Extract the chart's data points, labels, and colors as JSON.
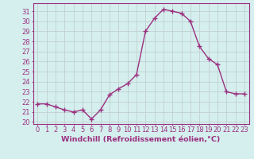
{
  "x": [
    0,
    1,
    2,
    3,
    4,
    5,
    6,
    7,
    8,
    9,
    10,
    11,
    12,
    13,
    14,
    15,
    16,
    17,
    18,
    19,
    20,
    21,
    22,
    23
  ],
  "y": [
    21.8,
    21.8,
    21.5,
    21.2,
    21.0,
    21.2,
    20.3,
    21.2,
    22.7,
    23.3,
    23.8,
    24.7,
    29.0,
    30.3,
    31.2,
    31.0,
    30.8,
    30.0,
    27.5,
    26.3,
    25.7,
    23.0,
    22.8,
    22.8
  ],
  "line_color": "#9b3080",
  "marker": "+",
  "marker_size": 4,
  "linewidth": 1.0,
  "xlabel": "Windchill (Refroidissement éolien,°C)",
  "xlabel_fontsize": 6.8,
  "ylabel_ticks": [
    20,
    21,
    22,
    23,
    24,
    25,
    26,
    27,
    28,
    29,
    30,
    31
  ],
  "xlim": [
    -0.5,
    23.5
  ],
  "ylim": [
    19.8,
    31.8
  ],
  "bg_color": "#d5efee",
  "grid_color": "#c0d0d0",
  "tick_fontsize": 6.0,
  "spine_color": "#9b3080"
}
